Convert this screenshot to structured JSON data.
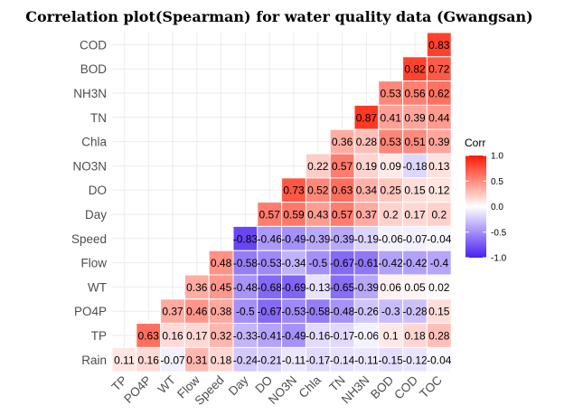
{
  "chart_data": {
    "type": "heatmap",
    "title": "Correlation plot(Spearman) for water quality data (Gwangsan)",
    "x_labels": [
      "TP",
      "PO4P",
      "WT",
      "Flow",
      "Speed",
      "Day",
      "DO",
      "NO3N",
      "Chla",
      "TN",
      "NH3N",
      "BOD",
      "COD",
      "TOC"
    ],
    "y_labels_top_to_bottom": [
      "COD",
      "BOD",
      "NH3N",
      "TN",
      "Chla",
      "NO3N",
      "DO",
      "Day",
      "Speed",
      "Flow",
      "WT",
      "PO4P",
      "TP",
      "Rain"
    ],
    "rows": [
      {
        "y": "COD",
        "values": [
          "0.83"
        ]
      },
      {
        "y": "BOD",
        "values": [
          "0.82",
          "0.72"
        ]
      },
      {
        "y": "NH3N",
        "values": [
          "0.53",
          "0.56",
          "0.62"
        ]
      },
      {
        "y": "TN",
        "values": [
          "0.87",
          "0.41",
          "0.39",
          "0.44"
        ]
      },
      {
        "y": "Chla",
        "values": [
          "0.36",
          "0.28",
          "0.53",
          "0.51",
          "0.39"
        ]
      },
      {
        "y": "NO3N",
        "values": [
          "0.22",
          "0.57",
          "0.19",
          "0.09",
          "-0.18",
          "0.13"
        ]
      },
      {
        "y": "DO",
        "values": [
          "0.73",
          "0.52",
          "0.63",
          "0.34",
          "0.25",
          "0.15",
          "0.12"
        ]
      },
      {
        "y": "Day",
        "values": [
          "0.57",
          "0.59",
          "0.43",
          "0.57",
          "0.37",
          "0.2",
          "0.17",
          "0.2"
        ]
      },
      {
        "y": "Speed",
        "values": [
          "-0.83",
          "-0.46",
          "-0.49",
          "-0.39",
          "-0.39",
          "-0.19",
          "-0.06",
          "-0.07",
          "-0.04"
        ]
      },
      {
        "y": "Flow",
        "values": [
          "0.48",
          "-0.58",
          "-0.53",
          "-0.34",
          "-0.5",
          "-0.67",
          "-0.61",
          "-0.42",
          "-0.42",
          "-0.4"
        ]
      },
      {
        "y": "WT",
        "values": [
          "0.36",
          "0.45",
          "-0.48",
          "-0.68",
          "-0.69",
          "-0.13",
          "-0.65",
          "-0.39",
          "0.06",
          "0.05",
          "0.02"
        ]
      },
      {
        "y": "PO4P",
        "values": [
          "0.37",
          "0.46",
          "0.38",
          "-0.5",
          "-0.67",
          "-0.53",
          "-0.58",
          "-0.48",
          "-0.26",
          "-0.3",
          "-0.28",
          "0.15"
        ]
      },
      {
        "y": "TP",
        "values": [
          "0.63",
          "0.16",
          "0.17",
          "0.32",
          "-0.33",
          "-0.41",
          "-0.49",
          "-0.16",
          "-0.17",
          "-0.06",
          "0.1",
          "0.18",
          "0.28"
        ]
      },
      {
        "y": "Rain",
        "values": [
          "0.11",
          "0.16",
          "-0.07",
          "0.31",
          "0.18",
          "-0.24",
          "-0.21",
          "-0.11",
          "-0.17",
          "-0.14",
          "-0.11",
          "-0.15",
          "-0.12",
          "-0.04"
        ]
      }
    ],
    "legend": {
      "title": "Corr",
      "ticks": [
        "1.0",
        "0.5",
        "0.0",
        "-0.5",
        "-1.0"
      ],
      "range": [
        -1,
        1
      ],
      "colors": {
        "low": "#4a1ff0",
        "mid": "#ffffff",
        "high": "#ff1a00"
      },
      "position": "right"
    },
    "grid": true
  }
}
